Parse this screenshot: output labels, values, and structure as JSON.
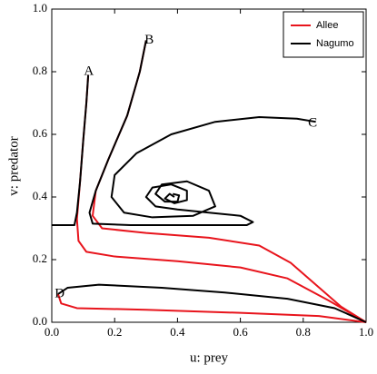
{
  "chart_data": {
    "type": "line",
    "xlabel": "u: prey",
    "ylabel": "v: predator",
    "xlim": [
      0,
      1
    ],
    "ylim": [
      0,
      1
    ],
    "xticks": [
      {
        "value": 0,
        "label": "0.0"
      },
      {
        "value": 0.2,
        "label": "0.2"
      },
      {
        "value": 0.4,
        "label": "0.4"
      },
      {
        "value": 0.6,
        "label": "0.6"
      },
      {
        "value": 0.8,
        "label": "0.8"
      },
      {
        "value": 1,
        "label": "1.0"
      }
    ],
    "yticks": [
      {
        "value": 0,
        "label": "0.0"
      },
      {
        "value": 0.2,
        "label": "0.2"
      },
      {
        "value": 0.4,
        "label": "0.4"
      },
      {
        "value": 0.6,
        "label": "0.6"
      },
      {
        "value": 0.8,
        "label": "0.8"
      },
      {
        "value": 1,
        "label": "1.0"
      }
    ],
    "legend": "upper right",
    "series": [
      {
        "name": "Allee",
        "color": "#e8141c",
        "x": [
          0.116,
          0.11,
          0.1,
          0.09,
          0.08,
          0.085,
          0.11,
          0.2,
          0.4,
          0.6,
          0.75,
          0.88,
          1.0,
          null,
          0.3,
          0.28,
          0.24,
          0.18,
          0.14,
          0.13,
          0.16,
          0.3,
          0.5,
          0.66,
          0.76,
          0.84,
          0.92,
          1.0,
          null,
          0.02,
          0.03,
          0.08,
          0.3,
          0.6,
          0.85,
          1.0
        ],
        "y": [
          0.79,
          0.7,
          0.58,
          0.45,
          0.33,
          0.26,
          0.225,
          0.21,
          0.195,
          0.175,
          0.14,
          0.07,
          0.0,
          null,
          0.9,
          0.8,
          0.66,
          0.52,
          0.42,
          0.34,
          0.3,
          0.285,
          0.27,
          0.245,
          0.19,
          0.12,
          0.05,
          0.0,
          null,
          0.09,
          0.06,
          0.045,
          0.04,
          0.03,
          0.02,
          0.0
        ]
      },
      {
        "name": "Nagumo",
        "color": "#000000",
        "x": [
          0.116,
          0.11,
          0.1,
          0.09,
          0.08,
          0.072,
          0.0,
          null,
          0.3,
          0.28,
          0.24,
          0.18,
          0.14,
          0.12,
          0.13,
          0.25,
          0.45,
          0.62,
          0.64,
          0.6,
          0.5,
          0.4,
          0.33,
          0.3,
          0.32,
          0.38,
          0.43,
          0.43,
          0.39,
          0.36,
          0.375,
          0.39,
          null,
          0.84,
          0.78,
          0.66,
          0.52,
          0.38,
          0.27,
          0.2,
          0.19,
          0.23,
          0.32,
          0.45,
          0.52,
          0.5,
          0.43,
          0.35,
          0.33,
          0.36,
          0.4,
          0.405,
          0.385,
          null,
          0.02,
          0.05,
          0.15,
          0.35,
          0.55,
          0.75,
          0.9,
          1.0
        ],
        "y": [
          0.79,
          0.7,
          0.58,
          0.45,
          0.35,
          0.31,
          0.31,
          null,
          0.9,
          0.8,
          0.66,
          0.52,
          0.42,
          0.35,
          0.315,
          0.31,
          0.31,
          0.31,
          0.32,
          0.34,
          0.35,
          0.36,
          0.37,
          0.4,
          0.43,
          0.44,
          0.42,
          0.39,
          0.38,
          0.395,
          0.41,
          0.4,
          null,
          0.64,
          0.65,
          0.655,
          0.64,
          0.6,
          0.54,
          0.47,
          0.4,
          0.35,
          0.335,
          0.34,
          0.37,
          0.42,
          0.45,
          0.44,
          0.41,
          0.385,
          0.385,
          0.405,
          0.41,
          null,
          0.09,
          0.11,
          0.12,
          0.11,
          0.095,
          0.075,
          0.045,
          0.0
        ]
      }
    ],
    "annotations": [
      {
        "text": "A",
        "x": 0.118,
        "y": 0.8
      },
      {
        "text": "B",
        "x": 0.31,
        "y": 0.9
      },
      {
        "text": "C",
        "x": 0.83,
        "y": 0.635
      },
      {
        "text": "D",
        "x": 0.025,
        "y": 0.09
      }
    ]
  }
}
